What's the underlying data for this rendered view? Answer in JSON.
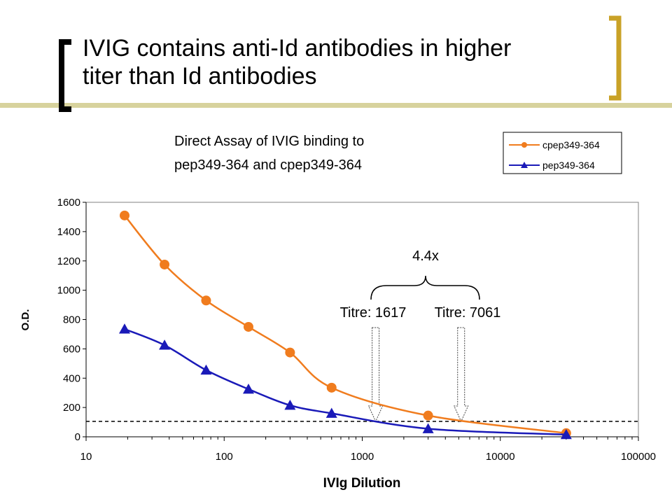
{
  "slide": {
    "title_line1": "IVIG contains anti-Id antibodies in higher",
    "title_line2": "titer than Id antibodies",
    "accent_color": "#c9a227",
    "title_bar_color": "#d7d29d",
    "bracket_left_color": "#000000"
  },
  "chart_data": {
    "type": "line",
    "title_line1": "Direct Assay of IVIG binding to",
    "title_line2": "pep349-364 and cpep349-364",
    "xlabel": "IVIg Dilution",
    "ylabel": "O.D.",
    "x_scale": "log",
    "xlim": [
      10,
      100000
    ],
    "ylim": [
      0,
      1600
    ],
    "x_ticks": [
      "10",
      "100",
      "1000",
      "10000",
      "100000"
    ],
    "y_ticks": [
      "0",
      "200",
      "400",
      "600",
      "800",
      "1000",
      "1200",
      "1400",
      "1600"
    ],
    "grid": false,
    "legend_position": "top-right",
    "series": [
      {
        "name": "cpep349-364",
        "color": "#f07c1e",
        "marker": "circle",
        "x": [
          19,
          37,
          74,
          150,
          300,
          600,
          3000,
          30000
        ],
        "y": [
          1510,
          1175,
          930,
          750,
          575,
          335,
          145,
          25
        ]
      },
      {
        "name": "pep349-364",
        "color": "#1a1ab8",
        "marker": "triangle",
        "x": [
          19,
          37,
          74,
          150,
          300,
          600,
          3000,
          30000
        ],
        "y": [
          735,
          625,
          455,
          325,
          215,
          160,
          55,
          15
        ]
      }
    ],
    "threshold": {
      "y": 105,
      "style": "dashed"
    },
    "annotations": {
      "titre_left": "Titre: 1617",
      "titre_right": "Titre: 7061",
      "ratio": "4.4x",
      "arrow_left_x": 1250,
      "arrow_right_x": 5200
    }
  }
}
